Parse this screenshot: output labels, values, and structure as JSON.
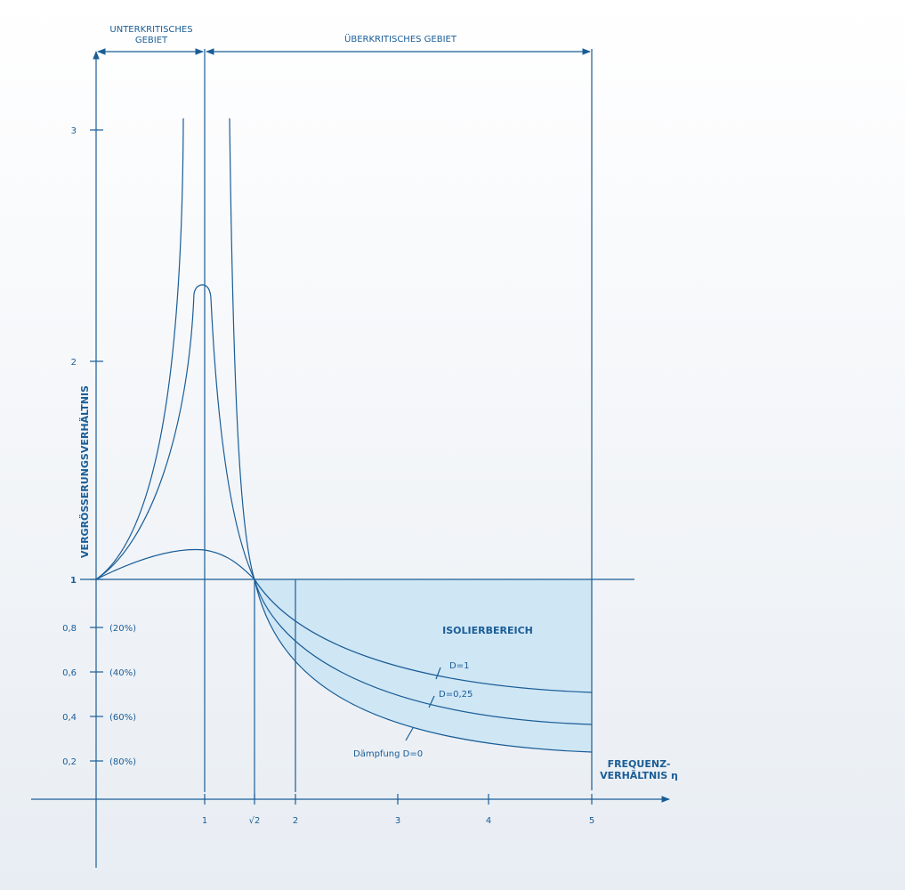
{
  "header": {
    "subcritical": [
      "UNTERKRITISCHES",
      "GEBIET"
    ],
    "supercritical": "ÜBERKRITISCHES GEBIET"
  },
  "y_axis": {
    "label": "VERGRÖSSERUNGSVERHÄLTNIS",
    "ticks": [
      "3",
      "2",
      "1",
      "0,8",
      "0,6",
      "0,4",
      "0,2"
    ],
    "percent_labels": [
      "(20%)",
      "(40%)",
      "(60%)",
      "(80%)"
    ]
  },
  "x_axis": {
    "label": [
      "FREQUENZ-",
      "VERHÄLTNIS η"
    ],
    "ticks": [
      "1",
      "√2",
      "2",
      "3",
      "4",
      "5"
    ]
  },
  "annotations": {
    "isolation": "ISOLIERBEREICH",
    "d1": "D=1",
    "d025": "D=0,25",
    "d0": "Dämpfung D=0"
  }
}
